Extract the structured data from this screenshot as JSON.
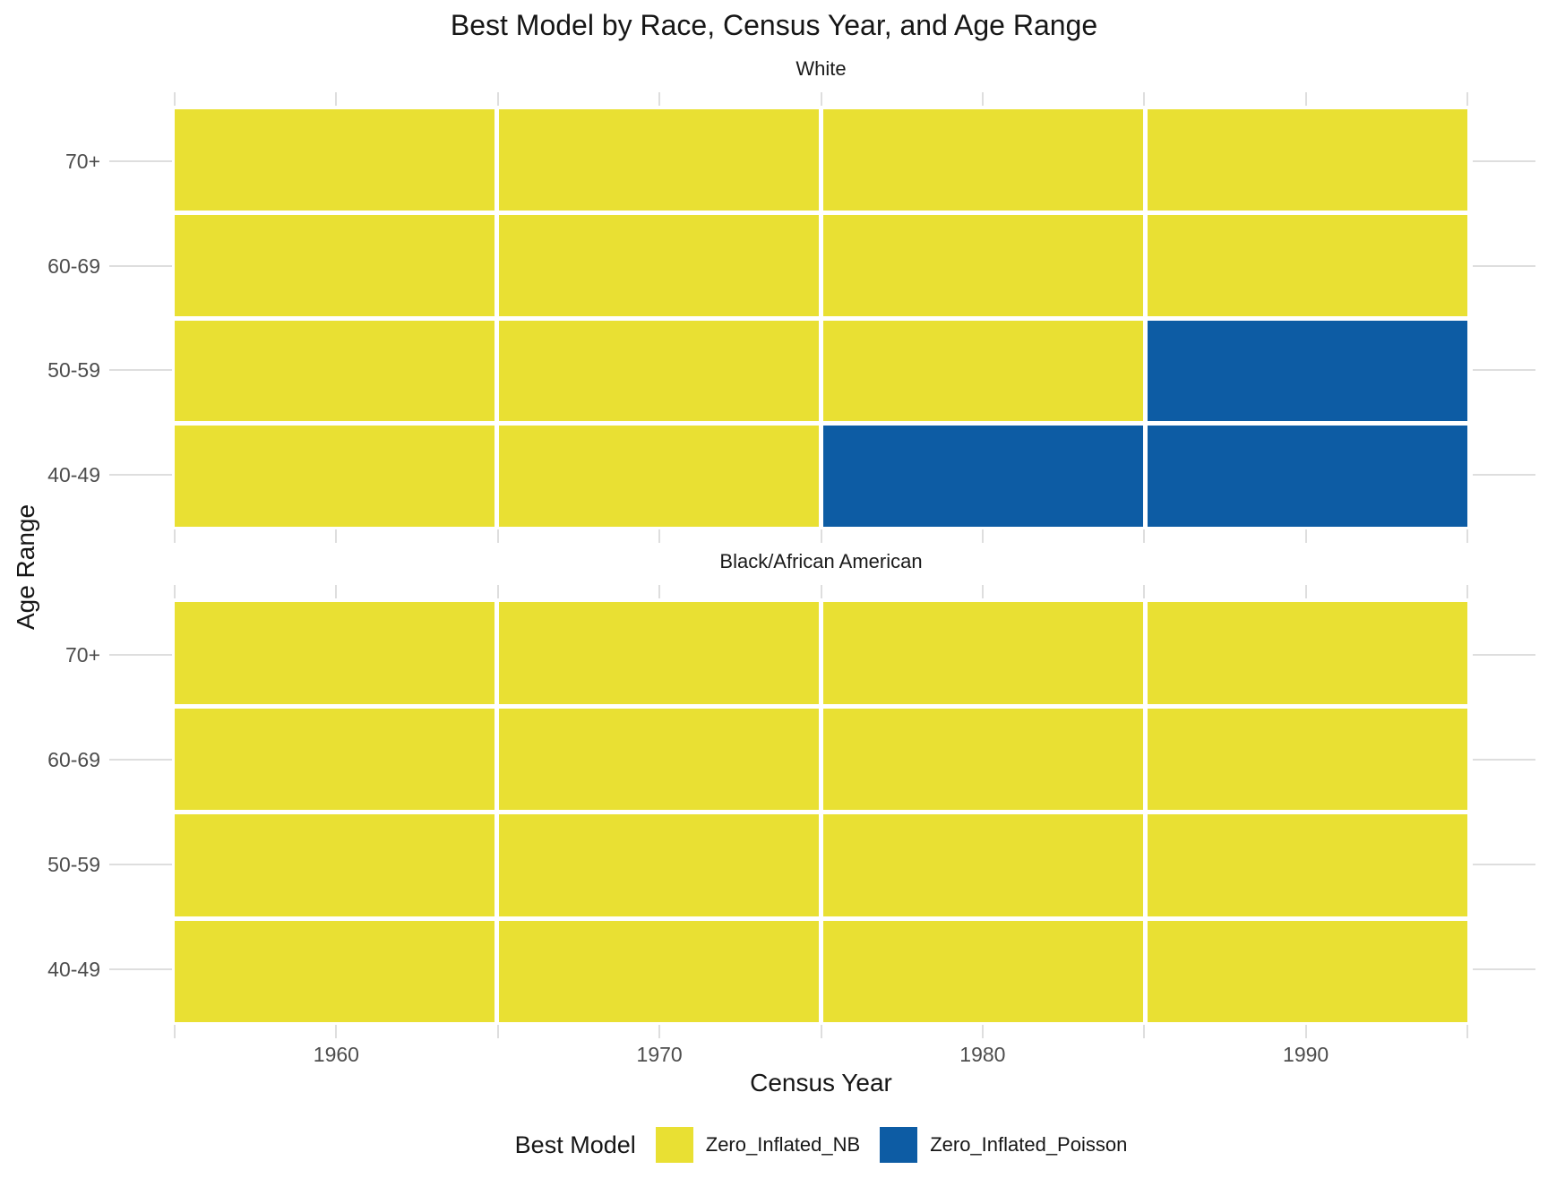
{
  "title": "Best Model by Race, Census Year, and Age Range",
  "axes": {
    "x_title": "Census Year",
    "y_title": "Age Range"
  },
  "colors": {
    "background": "#FFFFFF",
    "tick_mark": "#DEDEDE",
    "tick_label": "#4D4D4D",
    "text": "#161616",
    "nb_yellow": "#E9E033",
    "poisson_blue": "#0D5CA4"
  },
  "chart_data": {
    "type": "heatmap",
    "title": "Best Model by Race, Census Year, and Age Range",
    "xlabel": "Census Year",
    "ylabel": "Age Range",
    "grid": "off",
    "x_categories": [
      "1960",
      "1970",
      "1980",
      "1990"
    ],
    "y_categories_top_to_bottom": [
      "70+",
      "60-69",
      "50-59",
      "40-49"
    ],
    "legend": {
      "title": "Best Model",
      "position": "bottom",
      "entries": [
        {
          "label": "Zero_Inflated_NB",
          "color": "#E9E033"
        },
        {
          "label": "Zero_Inflated_Poisson",
          "color": "#0D5CA4"
        }
      ]
    },
    "facets": [
      {
        "label": "White",
        "grid_rows_top_to_bottom": [
          [
            "Zero_Inflated_NB",
            "Zero_Inflated_NB",
            "Zero_Inflated_NB",
            "Zero_Inflated_NB"
          ],
          [
            "Zero_Inflated_NB",
            "Zero_Inflated_NB",
            "Zero_Inflated_NB",
            "Zero_Inflated_NB"
          ],
          [
            "Zero_Inflated_NB",
            "Zero_Inflated_NB",
            "Zero_Inflated_NB",
            "Zero_Inflated_Poisson"
          ],
          [
            "Zero_Inflated_NB",
            "Zero_Inflated_NB",
            "Zero_Inflated_Poisson",
            "Zero_Inflated_Poisson"
          ]
        ]
      },
      {
        "label": "Black/African American",
        "grid_rows_top_to_bottom": [
          [
            "Zero_Inflated_NB",
            "Zero_Inflated_NB",
            "Zero_Inflated_NB",
            "Zero_Inflated_NB"
          ],
          [
            "Zero_Inflated_NB",
            "Zero_Inflated_NB",
            "Zero_Inflated_NB",
            "Zero_Inflated_NB"
          ],
          [
            "Zero_Inflated_NB",
            "Zero_Inflated_NB",
            "Zero_Inflated_NB",
            "Zero_Inflated_NB"
          ],
          [
            "Zero_Inflated_NB",
            "Zero_Inflated_NB",
            "Zero_Inflated_NB",
            "Zero_Inflated_NB"
          ]
        ]
      }
    ]
  }
}
